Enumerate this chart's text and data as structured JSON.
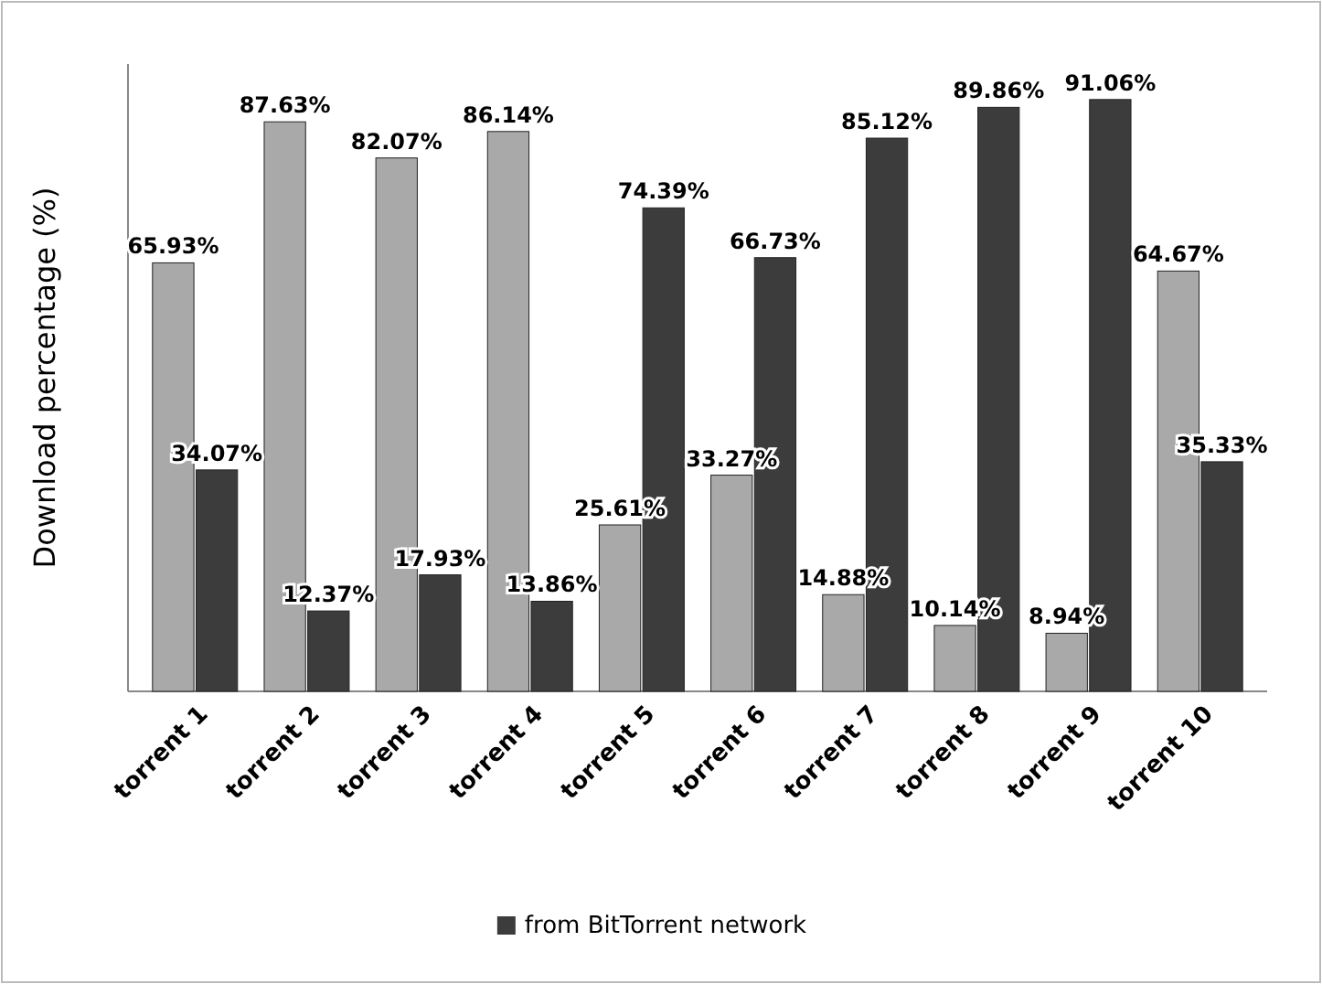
{
  "chart_data": {
    "type": "bar",
    "ylabel": "Download percentage (%)",
    "categories": [
      "torrent 1",
      "torrent 2",
      "torrent 3",
      "torrent 4",
      "torrent 5",
      "torrent 6",
      "torrent 7",
      "torrent 8",
      "torrent 9",
      "torrent 10"
    ],
    "series": [
      {
        "color": "#a9a9a9",
        "values": [
          65.93,
          87.63,
          82.07,
          86.14,
          25.61,
          33.27,
          14.88,
          10.14,
          8.94,
          64.67
        ],
        "value_labels": [
          "65.93%",
          "87.63%",
          "82.07%",
          "86.14%",
          "25.61%",
          "33.27%",
          "14.88%",
          "10.14%",
          "8.94%",
          "64.67%"
        ]
      },
      {
        "name": "from BitTorrent network",
        "color": "#3c3c3c",
        "values": [
          34.07,
          12.37,
          17.93,
          13.86,
          74.39,
          66.73,
          85.12,
          89.86,
          91.06,
          35.33
        ],
        "value_labels": [
          "34.07%",
          "12.37%",
          "17.93%",
          "13.86%",
          "74.39%",
          "66.73%",
          "85.12%",
          "89.86%",
          "91.06%",
          "35.33%"
        ]
      }
    ],
    "tick_labels": "x",
    "legend": "bottom"
  }
}
